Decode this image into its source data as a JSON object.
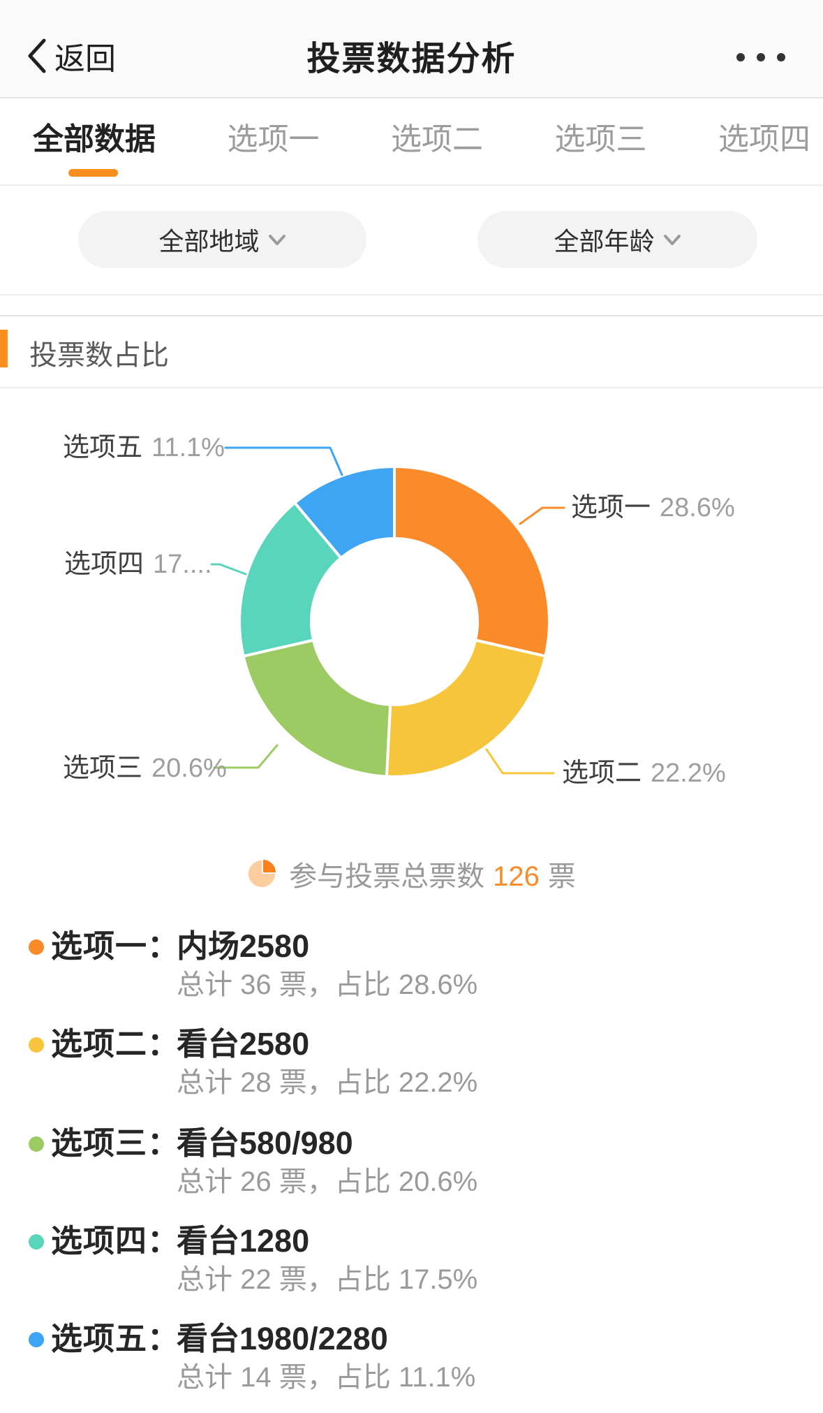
{
  "header": {
    "back_label": "返回",
    "title": "投票数据分析"
  },
  "tabs": [
    {
      "label": "全部数据",
      "active": true
    },
    {
      "label": "选项一",
      "active": false
    },
    {
      "label": "选项二",
      "active": false
    },
    {
      "label": "选项三",
      "active": false
    },
    {
      "label": "选项四",
      "active": false
    }
  ],
  "filters": {
    "region": {
      "label": "全部地域"
    },
    "age": {
      "label": "全部年龄"
    }
  },
  "section": {
    "title": "投票数占比"
  },
  "theme": {
    "accent": "#fb8e1c"
  },
  "chart_data": {
    "type": "pie",
    "donut": true,
    "title": "投票数占比",
    "total_votes": 126,
    "series": [
      {
        "name": "选项一",
        "value": 36,
        "percent": "28.6%",
        "display_percent": "28.6%",
        "color": "#fa8b28"
      },
      {
        "name": "选项二",
        "value": 28,
        "percent": "22.2%",
        "display_percent": "22.2%",
        "color": "#f7c53c"
      },
      {
        "name": "选项三",
        "value": 26,
        "percent": "20.6%",
        "display_percent": "20.6%",
        "color": "#9bcb62"
      },
      {
        "name": "选项四",
        "value": 22,
        "percent": "17.5%",
        "display_percent": "17....",
        "color": "#58d5ba"
      },
      {
        "name": "选项五",
        "value": 14,
        "percent": "11.1%",
        "display_percent": "11.1%",
        "color": "#3ea5f5"
      }
    ],
    "total": {
      "prefix": "参与投票总票数",
      "value": "126",
      "suffix": "票",
      "icon_light": "#fbcd9f",
      "icon_dark": "#f8821e",
      "value_color": "#f98b28"
    }
  },
  "list": [
    {
      "label": "选项一：",
      "value": "内场2580",
      "detail": "总计 36 票，占比 28.6%",
      "color": "#fa8b28"
    },
    {
      "label": "选项二：",
      "value": "看台2580",
      "detail": "总计 28 票，占比 22.2%",
      "color": "#f7c53c"
    },
    {
      "label": "选项三：",
      "value": "看台580/980",
      "detail": "总计 26 票，占比 20.6%",
      "color": "#9bcb62"
    },
    {
      "label": "选项四：",
      "value": "看台1280",
      "detail": "总计 22 票，占比 17.5%",
      "color": "#58d5ba"
    },
    {
      "label": "选项五：",
      "value": "看台1980/2280",
      "detail": "总计 14 票，占比 11.1%",
      "color": "#3ea5f5"
    }
  ]
}
